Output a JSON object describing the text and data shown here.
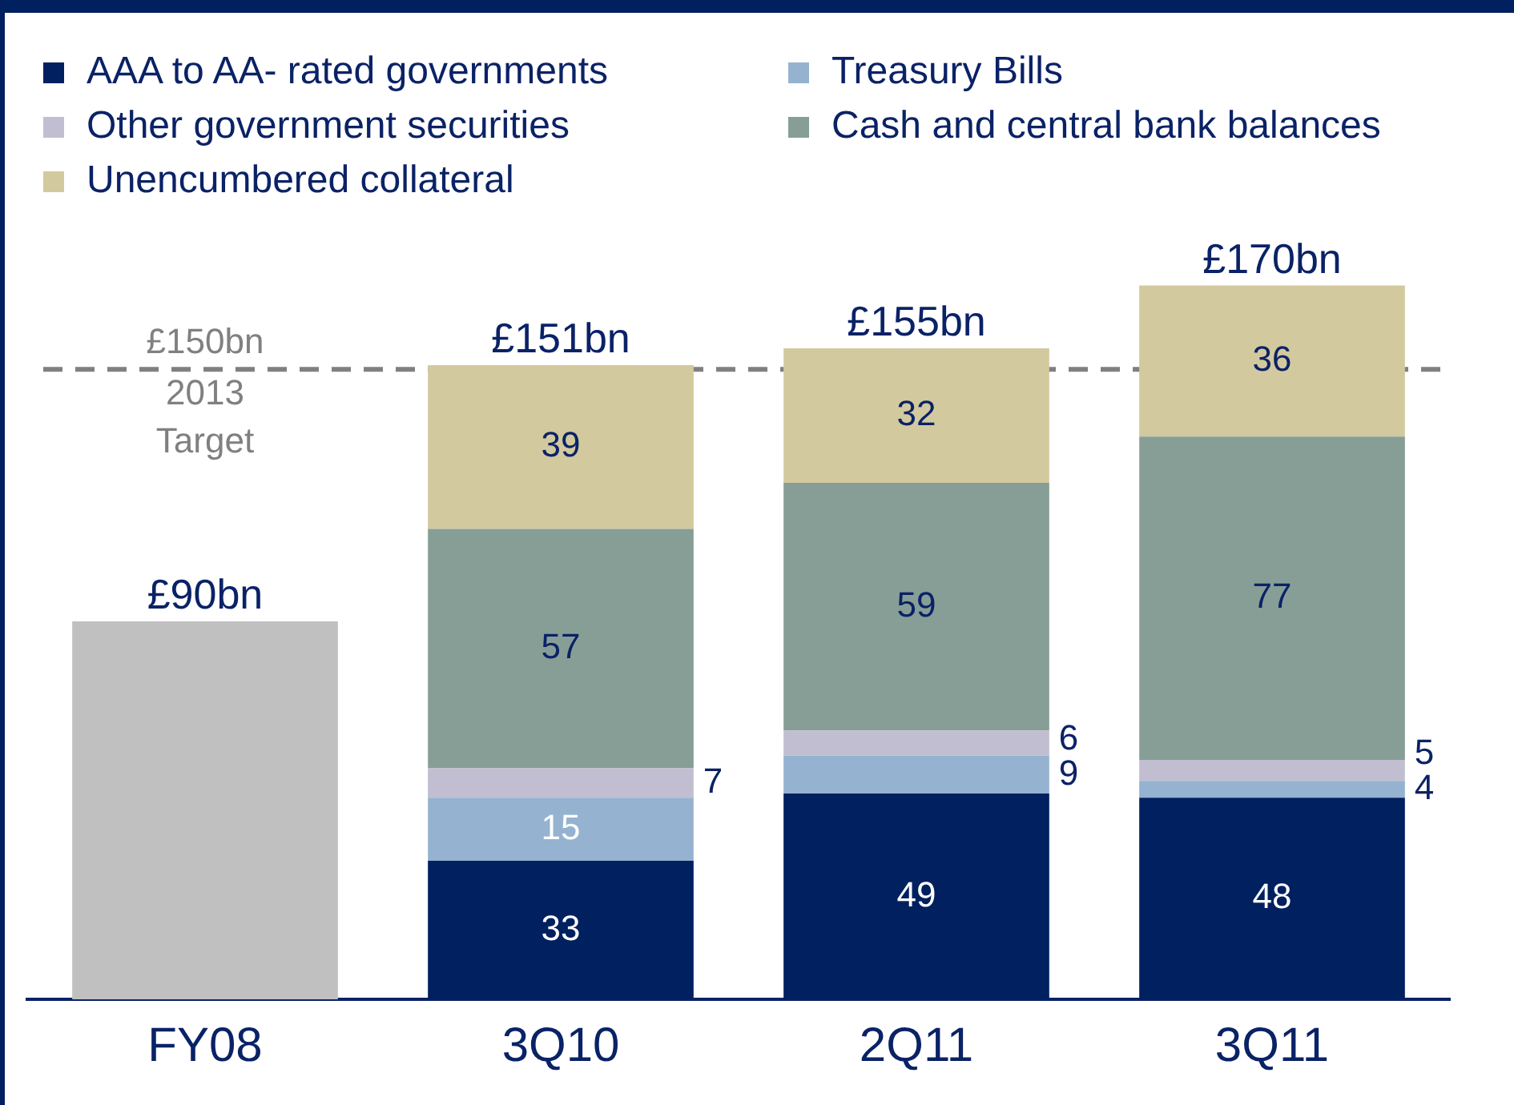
{
  "chart_data": {
    "type": "bar",
    "stacked": true,
    "categories": [
      "FY08",
      "3Q10",
      "2Q11",
      "3Q11"
    ],
    "series": [
      {
        "name": "AAA to AA- rated governments",
        "color": "#002060",
        "values": [
          null,
          33,
          49,
          48
        ],
        "value_labels": [
          null,
          "33",
          "49",
          "48"
        ]
      },
      {
        "name": "Treasury Bills",
        "color": "#95b3d0",
        "values": [
          null,
          15,
          9,
          4
        ],
        "value_labels": [
          null,
          "15",
          "9",
          "4"
        ]
      },
      {
        "name": "Other government securities",
        "color": "#c0bed0",
        "values": [
          null,
          7,
          6,
          5
        ],
        "value_labels": [
          null,
          "7",
          "6",
          "5"
        ]
      },
      {
        "name": "Cash and central bank balances",
        "color": "#879e96",
        "values": [
          null,
          57,
          59,
          77
        ],
        "value_labels": [
          null,
          "57",
          "59",
          "77"
        ]
      },
      {
        "name": "Unencumbered collateral",
        "color": "#d3c99e",
        "values": [
          null,
          39,
          32,
          36
        ],
        "value_labels": [
          null,
          "39",
          "32",
          "36"
        ]
      },
      {
        "color": "#c0c0c0",
        "values": [
          90,
          null,
          null,
          null
        ]
      }
    ],
    "totals": [
      "£90bn",
      "£151bn",
      "£155bn",
      "£170bn"
    ],
    "ref_lines": [
      {
        "axis": "y",
        "value": 150,
        "label": "£150bn 2013 Target",
        "color": "#808080",
        "line_style": "dashed"
      }
    ],
    "legend": "top",
    "tick_labels": "x"
  }
}
